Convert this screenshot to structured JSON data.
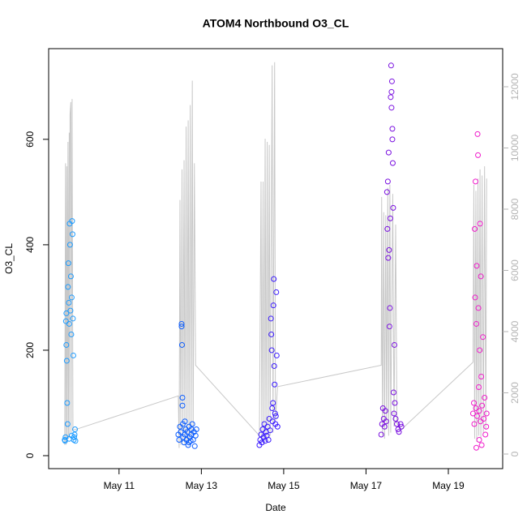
{
  "chart_data": {
    "type": "scatter",
    "title": "ATOM4 Northbound O3_CL",
    "xlabel": "Date",
    "ylabel": "O3_CL",
    "xlim": [
      9.29,
      20.32
    ],
    "ylim": [
      -24.6,
      772
    ],
    "xticks": [
      {
        "value": 11,
        "label": "May 11"
      },
      {
        "value": 13,
        "label": "May 13"
      },
      {
        "value": 15,
        "label": "May 15"
      },
      {
        "value": 17,
        "label": "May 17"
      },
      {
        "value": 19,
        "label": "May 19"
      }
    ],
    "yticks": [
      0,
      200,
      400,
      600
    ],
    "y2lim": [
      -477,
      13245
    ],
    "y2ticks": [
      0,
      2000,
      4000,
      6000,
      8000,
      10000,
      12000
    ],
    "y2tick_color": "#b4b4b4",
    "series": [
      {
        "type": "line",
        "axis": "y2",
        "color": "#c8c8c8",
        "x": [
          9.68,
          9.7,
          9.71,
          9.73,
          9.74,
          9.76,
          9.77,
          9.79,
          9.8,
          9.81,
          9.83,
          9.84,
          9.86,
          9.88,
          9.94,
          12.44,
          12.46,
          12.48,
          12.5,
          12.53,
          12.55,
          12.58,
          12.6,
          12.63,
          12.65,
          12.68,
          12.7,
          12.73,
          12.75,
          12.78,
          12.8,
          12.83,
          12.86,
          14.41,
          14.45,
          14.47,
          14.5,
          14.52,
          14.55,
          14.57,
          14.6,
          14.62,
          14.65,
          14.67,
          14.72,
          14.74,
          14.78,
          14.8,
          14.85,
          17.37,
          17.38,
          17.4,
          17.43,
          17.45,
          17.48,
          17.5,
          17.53,
          17.55,
          17.58,
          17.6,
          17.65,
          17.68,
          17.72,
          17.75,
          17.86,
          19.6,
          19.62,
          19.64,
          19.67,
          19.69,
          19.72,
          19.74,
          19.77,
          19.79,
          19.82,
          19.85,
          19.88,
          19.91,
          19.93
        ],
        "values": [
          300,
          9500,
          300,
          9400,
          400,
          10200,
          500,
          10500,
          600,
          11100,
          11500,
          700,
          11600,
          800,
          800,
          1900,
          200,
          8300,
          300,
          9300,
          400,
          9600,
          300,
          10700,
          400,
          10900,
          300,
          11400,
          500,
          12200,
          600,
          9500,
          2900,
          600,
          8900,
          400,
          8900,
          300,
          10300,
          400,
          10200,
          500,
          10100,
          600,
          12700,
          700,
          12800,
          1100,
          2200,
          2900,
          8400,
          600,
          7900,
          500,
          7800,
          800,
          8700,
          600,
          8800,
          700,
          8500,
          900,
          7500,
          1000,
          800,
          3000,
          8800,
          500,
          8600,
          400,
          9000,
          600,
          9300,
          500,
          9100,
          700,
          9400,
          800,
          9000
        ]
      },
      {
        "type": "scatter",
        "color": "#1c9bff",
        "x": [
          9.68,
          9.69,
          9.7,
          9.71,
          9.72,
          9.72,
          9.73,
          9.74,
          9.75,
          9.76,
          9.77,
          9.78,
          9.79,
          9.8,
          9.81,
          9.82,
          9.83,
          9.84,
          9.85,
          9.86,
          9.87,
          9.88,
          9.89,
          9.9,
          9.91,
          9.92,
          9.93,
          9.94,
          9.79,
          9.85
        ],
        "values": [
          30,
          28,
          35,
          255,
          270,
          210,
          180,
          100,
          60,
          320,
          365,
          290,
          250,
          440,
          400,
          275,
          340,
          230,
          300,
          445,
          420,
          260,
          190,
          30,
          35,
          40,
          50,
          28,
          32,
          38
        ]
      },
      {
        "type": "scatter",
        "color": "#0a5cff",
        "x": [
          12.44,
          12.46,
          12.48,
          12.5,
          12.52,
          12.53,
          12.54,
          12.55,
          12.56,
          12.58,
          12.6,
          12.62,
          12.64,
          12.66,
          12.68,
          12.7,
          12.72,
          12.74,
          12.76,
          12.78,
          12.8,
          12.82,
          12.84,
          12.86,
          12.88,
          12.52,
          12.54,
          12.6,
          12.7,
          12.76
        ],
        "values": [
          40,
          30,
          55,
          45,
          250,
          210,
          110,
          60,
          35,
          25,
          40,
          50,
          30,
          45,
          20,
          55,
          35,
          28,
          40,
          60,
          30,
          45,
          18,
          38,
          50,
          245,
          95,
          65,
          25,
          50
        ]
      },
      {
        "type": "scatter",
        "color": "#3a1aff",
        "x": [
          14.41,
          14.43,
          14.45,
          14.47,
          14.49,
          14.51,
          14.53,
          14.55,
          14.57,
          14.59,
          14.61,
          14.63,
          14.65,
          14.67,
          14.69,
          14.7,
          14.71,
          14.72,
          14.73,
          14.74,
          14.75,
          14.76,
          14.77,
          14.78,
          14.79,
          14.8,
          14.81,
          14.82,
          14.83,
          14.85
        ],
        "values": [
          20,
          30,
          40,
          25,
          50,
          35,
          60,
          28,
          45,
          38,
          55,
          30,
          70,
          48,
          260,
          230,
          200,
          90,
          65,
          100,
          285,
          335,
          170,
          135,
          80,
          60,
          75,
          310,
          190,
          55
        ]
      },
      {
        "type": "scatter",
        "color": "#7a10e0",
        "x": [
          17.37,
          17.39,
          17.41,
          17.43,
          17.45,
          17.47,
          17.49,
          17.51,
          17.52,
          17.53,
          17.54,
          17.55,
          17.56,
          17.57,
          17.58,
          17.59,
          17.6,
          17.61,
          17.62,
          17.63,
          17.64,
          17.65,
          17.66,
          17.67,
          17.68,
          17.69,
          17.7,
          17.72,
          17.75,
          17.78,
          17.8,
          17.84,
          17.86,
          17.62,
          17.64
        ],
        "values": [
          40,
          60,
          90,
          70,
          55,
          85,
          65,
          500,
          430,
          520,
          375,
          575,
          390,
          245,
          280,
          450,
          680,
          740,
          660,
          710,
          600,
          555,
          470,
          120,
          80,
          210,
          100,
          70,
          60,
          50,
          45,
          60,
          55,
          690,
          620
        ]
      },
      {
        "type": "scatter",
        "color": "#f01ccb",
        "x": [
          19.6,
          19.62,
          19.63,
          19.64,
          19.65,
          19.66,
          19.67,
          19.68,
          19.69,
          19.7,
          19.71,
          19.72,
          19.73,
          19.74,
          19.75,
          19.76,
          19.77,
          19.78,
          19.79,
          19.8,
          19.81,
          19.82,
          19.84,
          19.86,
          19.88,
          19.9,
          19.92,
          19.93,
          19.68,
          19.75
        ],
        "values": [
          80,
          100,
          60,
          430,
          300,
          520,
          90,
          250,
          360,
          75,
          610,
          570,
          280,
          130,
          85,
          200,
          440,
          65,
          340,
          150,
          20,
          95,
          225,
          70,
          110,
          40,
          55,
          80,
          15,
          30
        ]
      }
    ]
  }
}
